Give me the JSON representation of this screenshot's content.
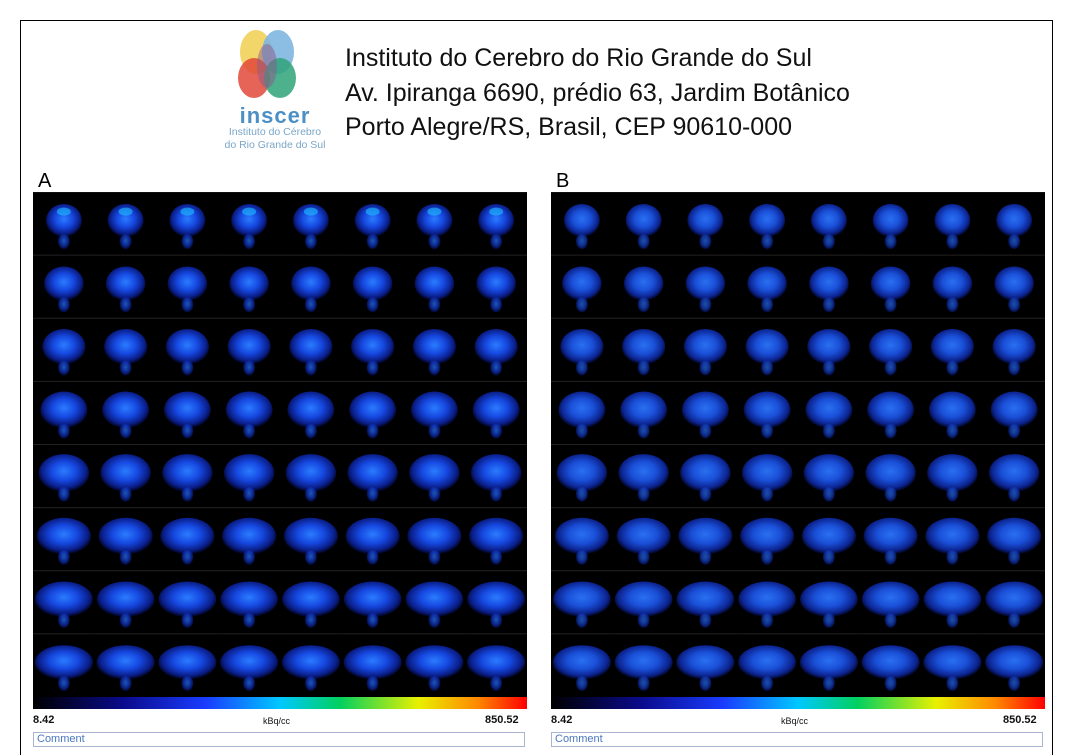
{
  "header": {
    "logo": {
      "name": "inscer",
      "lines": [
        "Instituto do Cérebro",
        "do Rio Grande do Sul"
      ]
    },
    "address": [
      "Instituto do Cerebro do Rio Grande do Sul",
      "Av. Ipiranga 6690, prédio 63, Jardim Botânico",
      "Porto Alegre/RS, Brasil, CEP 90610-000"
    ]
  },
  "panels": [
    {
      "label": "A",
      "scale": {
        "min": 8.42,
        "unit": "kBq/cc",
        "max": 850.52
      },
      "comment": "Comment"
    },
    {
      "label": "B",
      "scale": {
        "min": 8.42,
        "unit": "kBq/cc",
        "max": 850.52
      },
      "comment": "Comment"
    }
  ]
}
